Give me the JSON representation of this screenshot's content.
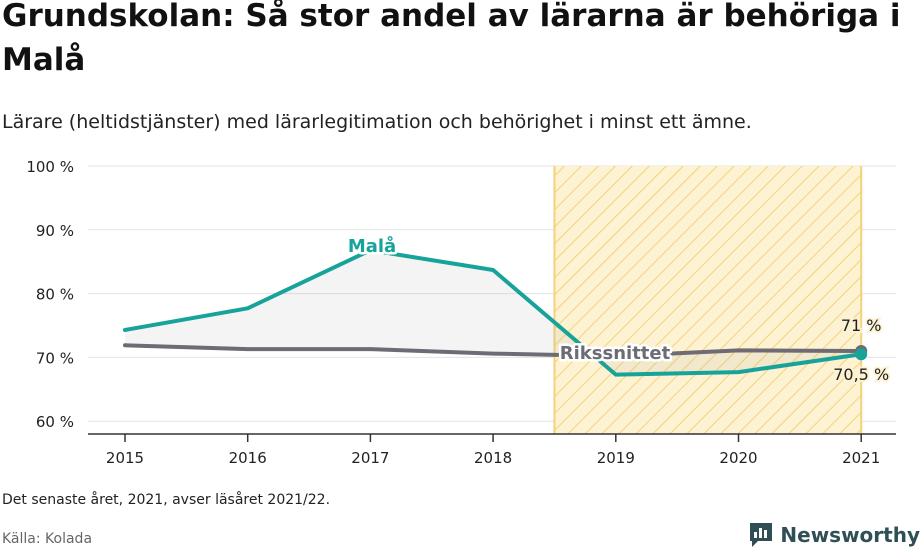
{
  "title": "Grundskolan: Så stor andel av lärarna är behöriga i Malå",
  "subtitle": "Lärare (heltidstjänster) med lärarlegitimation och behörighet i minst ett ämne.",
  "footnote": "Det senaste året, 2021, avser läsåret 2021/22.",
  "source": "Källa: Kolada",
  "brand": {
    "name": "Newsworthy",
    "icon": "newsworthy-logo-icon"
  },
  "colors": {
    "mala": "#17a39a",
    "riksnittet": "#6d6b74",
    "highlight_stroke": "#f5d27a",
    "highlight_fill": "#fdf2d2",
    "brand": "#2f4f55"
  },
  "chart_data": {
    "type": "line",
    "x": [
      "2015",
      "2016",
      "2017",
      "2018",
      "2019",
      "2020",
      "2021"
    ],
    "ylim": [
      58,
      100
    ],
    "yticks": [
      60,
      70,
      80,
      90,
      100
    ],
    "ytick_labels": [
      "60 %",
      "70 %",
      "80 %",
      "90 %",
      "100 %"
    ],
    "grid": true,
    "highlight_range": [
      "2018.5",
      "2021"
    ],
    "series": [
      {
        "name": "Malå",
        "values": [
          74.3,
          77.7,
          86.8,
          83.7,
          67.3,
          67.7,
          70.5
        ]
      },
      {
        "name": "Rikssnittet",
        "values": [
          71.9,
          71.3,
          71.3,
          70.6,
          70.2,
          71.1,
          71.0
        ]
      }
    ],
    "annotations": [
      {
        "label": "71 %",
        "series": "Rikssnittet",
        "x": "2021",
        "value": 71.0
      },
      {
        "label": "70,5 %",
        "series": "Malå",
        "x": "2021",
        "value": 70.5
      }
    ]
  }
}
